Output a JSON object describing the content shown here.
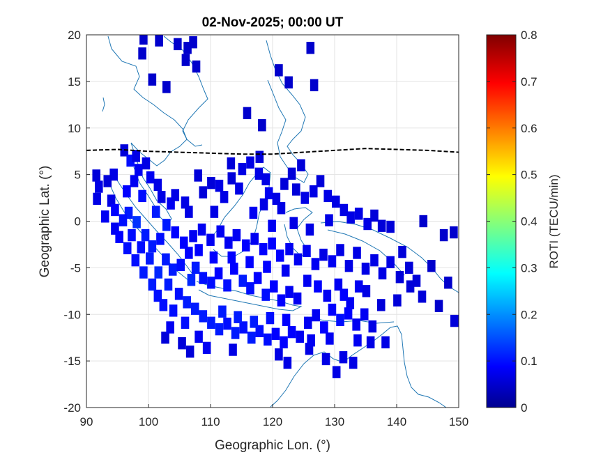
{
  "chart_data": {
    "type": "heatmap",
    "title": "02-Nov-2025; 00:00 UT",
    "xlabel": "Geographic Lon. (°)",
    "ylabel": "Geographic Lat. (°)",
    "xlim": [
      90,
      150
    ],
    "ylim": [
      -20,
      20
    ],
    "xticks": [
      90,
      100,
      110,
      120,
      130,
      140,
      150
    ],
    "yticks": [
      20,
      15,
      10,
      5,
      0,
      -5,
      -10,
      -15,
      -20
    ],
    "grid": true,
    "colorbar": {
      "label": "ROTI (TECU/min)",
      "range": [
        0,
        0.8
      ],
      "ticks": [
        0,
        0.1,
        0.2,
        0.3,
        0.4,
        0.5,
        0.6,
        0.7,
        0.8
      ],
      "colormap": "jet"
    },
    "boundary_line": {
      "style": "dashed",
      "color": "#000000",
      "points": [
        [
          90,
          7.6
        ],
        [
          95,
          7.7
        ],
        [
          100,
          7.5
        ],
        [
          105,
          7.4
        ],
        [
          110,
          7.3
        ],
        [
          115,
          7.2
        ],
        [
          120,
          7.2
        ],
        [
          125,
          7.4
        ],
        [
          130,
          7.6
        ],
        [
          135,
          7.8
        ],
        [
          140,
          7.7
        ],
        [
          145,
          7.6
        ],
        [
          150,
          7.4
        ]
      ]
    },
    "cell_size_deg": 1.3,
    "cells": [
      [
        99.2,
        19.6,
        0.06
      ],
      [
        101.7,
        19.4,
        0.06
      ],
      [
        104.7,
        19.0,
        0.06
      ],
      [
        106.3,
        18.6,
        0.06
      ],
      [
        99.0,
        18.0,
        0.06
      ],
      [
        106.0,
        17.3,
        0.06
      ],
      [
        107.7,
        16.6,
        0.06
      ],
      [
        121.0,
        16.2,
        0.06
      ],
      [
        122.6,
        14.9,
        0.06
      ],
      [
        126.7,
        14.6,
        0.06
      ],
      [
        100.6,
        15.2,
        0.06
      ],
      [
        102.9,
        14.4,
        0.06
      ],
      [
        126.1,
        18.6,
        0.06
      ],
      [
        115.9,
        11.6,
        0.06
      ],
      [
        118.3,
        10.3,
        0.06
      ],
      [
        107.2,
        19.2,
        0.06
      ],
      [
        96.1,
        7.6,
        0.07
      ],
      [
        94.4,
        5.0,
        0.08
      ],
      [
        93.4,
        4.3,
        0.07
      ],
      [
        91.6,
        4.9,
        0.07
      ],
      [
        92.0,
        3.7,
        0.08
      ],
      [
        94.0,
        2.2,
        0.08
      ],
      [
        97.1,
        6.5,
        0.11
      ],
      [
        98.4,
        5.5,
        0.09
      ],
      [
        99.6,
        6.2,
        0.08
      ],
      [
        100.3,
        4.7,
        0.09
      ],
      [
        101.5,
        3.9,
        0.08
      ],
      [
        102.1,
        2.6,
        0.08
      ],
      [
        103.6,
        1.9,
        0.09
      ],
      [
        104.3,
        2.8,
        0.08
      ],
      [
        105.9,
        2.0,
        0.08
      ],
      [
        106.5,
        1.0,
        0.08
      ],
      [
        108.8,
        3.1,
        0.07
      ],
      [
        110.1,
        4.1,
        0.07
      ],
      [
        111.4,
        3.8,
        0.08
      ],
      [
        112.2,
        2.6,
        0.08
      ],
      [
        113.4,
        4.6,
        0.07
      ],
      [
        115.1,
        5.6,
        0.08
      ],
      [
        116.4,
        6.3,
        0.08
      ],
      [
        117.8,
        5.1,
        0.08
      ],
      [
        118.9,
        4.5,
        0.08
      ],
      [
        119.4,
        3.0,
        0.09
      ],
      [
        120.6,
        2.4,
        0.08
      ],
      [
        121.9,
        4.0,
        0.07
      ],
      [
        123.1,
        5.1,
        0.07
      ],
      [
        123.8,
        3.4,
        0.07
      ],
      [
        125.2,
        2.5,
        0.08
      ],
      [
        126.6,
        3.2,
        0.08
      ],
      [
        127.7,
        4.3,
        0.07
      ],
      [
        128.9,
        2.7,
        0.08
      ],
      [
        130.2,
        2.1,
        0.08
      ],
      [
        131.5,
        1.2,
        0.08
      ],
      [
        132.6,
        0.4,
        0.08
      ],
      [
        133.9,
        0.8,
        0.08
      ],
      [
        135.3,
        -0.3,
        0.08
      ],
      [
        136.4,
        0.6,
        0.07
      ],
      [
        137.6,
        -0.5,
        0.07
      ],
      [
        139.0,
        -0.6,
        0.07
      ],
      [
        144.3,
        0.0,
        0.06
      ],
      [
        147.6,
        -1.5,
        0.06
      ],
      [
        149.2,
        -1.2,
        0.06
      ],
      [
        121.4,
        1.4,
        0.08
      ],
      [
        118.6,
        1.8,
        0.08
      ],
      [
        116.9,
        0.9,
        0.09
      ],
      [
        96.8,
        0.9,
        0.12
      ],
      [
        98.1,
        -0.1,
        0.14
      ],
      [
        99.5,
        -1.5,
        0.12
      ],
      [
        100.6,
        -2.7,
        0.12
      ],
      [
        101.9,
        -1.9,
        0.11
      ],
      [
        102.8,
        -4.1,
        0.12
      ],
      [
        103.9,
        -5.2,
        0.12
      ],
      [
        105.2,
        -4.7,
        0.11
      ],
      [
        106.5,
        -3.4,
        0.1
      ],
      [
        107.6,
        -5.0,
        0.12
      ],
      [
        108.8,
        -6.1,
        0.11
      ],
      [
        110.1,
        -6.6,
        0.11
      ],
      [
        111.3,
        -5.6,
        0.1
      ],
      [
        112.7,
        -6.9,
        0.11
      ],
      [
        113.8,
        -5.1,
        0.1
      ],
      [
        115.2,
        -6.4,
        0.12
      ],
      [
        116.4,
        -7.2,
        0.11
      ],
      [
        117.6,
        -6.1,
        0.1
      ],
      [
        118.9,
        -7.9,
        0.11
      ],
      [
        120.2,
        -7.0,
        0.1
      ],
      [
        121.4,
        -8.5,
        0.1
      ],
      [
        122.7,
        -7.6,
        0.09
      ],
      [
        124.0,
        -8.3,
        0.09
      ],
      [
        104.3,
        -1.2,
        0.1
      ],
      [
        105.7,
        -2.3,
        0.1
      ],
      [
        107.2,
        -1.6,
        0.09
      ],
      [
        108.6,
        -0.9,
        0.09
      ],
      [
        110.0,
        -2.0,
        0.09
      ],
      [
        111.6,
        -1.1,
        0.09
      ],
      [
        112.9,
        -2.3,
        0.09
      ],
      [
        114.2,
        -1.5,
        0.09
      ],
      [
        115.7,
        -2.6,
        0.1
      ],
      [
        117.1,
        -1.9,
        0.09
      ],
      [
        118.5,
        -3.0,
        0.1
      ],
      [
        119.9,
        -2.4,
        0.1
      ],
      [
        121.2,
        -3.7,
        0.1
      ],
      [
        122.7,
        -3.0,
        0.09
      ],
      [
        124.1,
        -4.1,
        0.09
      ],
      [
        125.5,
        -3.2,
        0.09
      ],
      [
        126.9,
        -4.6,
        0.09
      ],
      [
        128.2,
        -3.6,
        0.08
      ],
      [
        129.6,
        -4.3,
        0.09
      ],
      [
        130.9,
        -3.1,
        0.08
      ],
      [
        132.3,
        -4.8,
        0.08
      ],
      [
        133.6,
        -3.4,
        0.08
      ],
      [
        135.0,
        -5.1,
        0.08
      ],
      [
        136.4,
        -4.2,
        0.08
      ],
      [
        137.7,
        -5.6,
        0.08
      ],
      [
        139.0,
        -4.4,
        0.08
      ],
      [
        140.5,
        -6.0,
        0.07
      ],
      [
        142.0,
        -5.0,
        0.07
      ],
      [
        145.6,
        -4.8,
        0.06
      ],
      [
        148.3,
        -6.6,
        0.06
      ],
      [
        142.2,
        -7.0,
        0.07
      ],
      [
        144.1,
        -8.1,
        0.07
      ],
      [
        146.8,
        -9.1,
        0.06
      ],
      [
        149.3,
        -10.7,
        0.07
      ],
      [
        140.1,
        -8.5,
        0.07
      ],
      [
        137.5,
        -9.0,
        0.07
      ],
      [
        135.1,
        -7.5,
        0.08
      ],
      [
        132.5,
        -8.8,
        0.09
      ],
      [
        130.6,
        -6.8,
        0.09
      ],
      [
        128.8,
        -8.0,
        0.09
      ],
      [
        127.3,
        -7.0,
        0.1
      ],
      [
        104.9,
        -7.8,
        0.11
      ],
      [
        106.2,
        -8.7,
        0.12
      ],
      [
        107.5,
        -9.4,
        0.12
      ],
      [
        108.8,
        -10.2,
        0.12
      ],
      [
        110.1,
        -10.9,
        0.12
      ],
      [
        111.4,
        -11.6,
        0.12
      ],
      [
        112.7,
        -11.0,
        0.11
      ],
      [
        114.0,
        -12.0,
        0.12
      ],
      [
        115.3,
        -11.4,
        0.11
      ],
      [
        116.6,
        -12.5,
        0.12
      ],
      [
        117.9,
        -11.8,
        0.11
      ],
      [
        119.2,
        -12.7,
        0.11
      ],
      [
        120.5,
        -12.1,
        0.1
      ],
      [
        121.8,
        -13.0,
        0.1
      ],
      [
        123.1,
        -11.9,
        0.1
      ],
      [
        124.4,
        -12.4,
        0.09
      ],
      [
        125.7,
        -10.9,
        0.09
      ],
      [
        127.0,
        -10.1,
        0.09
      ],
      [
        128.3,
        -11.4,
        0.1
      ],
      [
        129.6,
        -9.5,
        0.1
      ],
      [
        130.9,
        -10.6,
        0.11
      ],
      [
        132.2,
        -9.9,
        0.1
      ],
      [
        133.5,
        -11.1,
        0.09
      ],
      [
        134.8,
        -10.0,
        0.09
      ],
      [
        136.1,
        -11.3,
        0.08
      ],
      [
        108.1,
        -12.4,
        0.09
      ],
      [
        109.4,
        -13.6,
        0.09
      ],
      [
        105.4,
        -13.1,
        0.07
      ],
      [
        102.7,
        -12.5,
        0.07
      ],
      [
        106.7,
        -14.0,
        0.07
      ],
      [
        113.6,
        -13.8,
        0.08
      ],
      [
        121.0,
        -14.3,
        0.08
      ],
      [
        122.4,
        -15.2,
        0.08
      ],
      [
        125.9,
        -13.7,
        0.08
      ],
      [
        128.6,
        -14.8,
        0.08
      ],
      [
        131.4,
        -14.6,
        0.08
      ],
      [
        130.3,
        -16.2,
        0.08
      ],
      [
        133.0,
        -15.2,
        0.08
      ],
      [
        135.8,
        -13.0,
        0.08
      ],
      [
        138.2,
        -13.0,
        0.08
      ],
      [
        133.7,
        -12.8,
        0.09
      ],
      [
        104.0,
        -9.6,
        0.11
      ],
      [
        106.9,
        -6.3,
        0.13
      ],
      [
        103.2,
        -6.8,
        0.12
      ],
      [
        101.6,
        -5.5,
        0.13
      ],
      [
        100.2,
        -4.0,
        0.12
      ],
      [
        98.8,
        -2.8,
        0.11
      ],
      [
        97.3,
        -1.5,
        0.11
      ],
      [
        95.9,
        0.1,
        0.11
      ],
      [
        94.6,
        1.2,
        0.1
      ],
      [
        96.5,
        3.2,
        0.1
      ],
      [
        99.0,
        2.7,
        0.11
      ],
      [
        101.2,
        1.0,
        0.12
      ],
      [
        102.9,
        -0.4,
        0.12
      ],
      [
        97.7,
        4.3,
        0.09
      ],
      [
        94.6,
        -0.8,
        0.09
      ],
      [
        98.0,
        7.0,
        0.08
      ],
      [
        108.0,
        4.9,
        0.07
      ],
      [
        113.3,
        6.2,
        0.07
      ],
      [
        114.6,
        3.5,
        0.08
      ],
      [
        110.6,
        1.0,
        0.08
      ],
      [
        129.1,
        0.1,
        0.08
      ],
      [
        126.0,
        -0.9,
        0.08
      ],
      [
        123.4,
        -0.2,
        0.08
      ],
      [
        119.9,
        -0.5,
        0.09
      ],
      [
        124.6,
        6.0,
        0.07
      ],
      [
        117.9,
        6.9,
        0.07
      ],
      [
        125.6,
        -6.4,
        0.09
      ],
      [
        122.1,
        -5.3,
        0.09
      ],
      [
        119.1,
        -4.9,
        0.1
      ],
      [
        116.3,
        -4.4,
        0.1
      ],
      [
        113.4,
        -3.9,
        0.1
      ],
      [
        110.5,
        -3.9,
        0.1
      ],
      [
        108.1,
        -3.1,
        0.1
      ],
      [
        131.5,
        -7.9,
        0.1
      ],
      [
        133.9,
        -7.0,
        0.09
      ],
      [
        129.2,
        -12.6,
        0.09
      ],
      [
        126.2,
        -12.8,
        0.09
      ],
      [
        140.9,
        -3.3,
        0.07
      ],
      [
        143.2,
        -6.4,
        0.07
      ],
      [
        101.5,
        -8.0,
        0.11
      ],
      [
        102.4,
        -9.0,
        0.11
      ],
      [
        100.6,
        -6.8,
        0.12
      ],
      [
        99.2,
        -5.5,
        0.12
      ],
      [
        97.9,
        -4.2,
        0.11
      ],
      [
        96.6,
        -2.9,
        0.11
      ],
      [
        95.3,
        -1.7,
        0.1
      ],
      [
        93.0,
        0.5,
        0.09
      ],
      [
        91.7,
        2.4,
        0.08
      ],
      [
        105.9,
        -10.9,
        0.11
      ],
      [
        103.5,
        -11.4,
        0.09
      ],
      [
        111.9,
        -9.7,
        0.12
      ],
      [
        114.4,
        -10.3,
        0.12
      ],
      [
        117.0,
        -10.8,
        0.12
      ],
      [
        119.6,
        -10.4,
        0.11
      ],
      [
        122.2,
        -10.6,
        0.1
      ]
    ]
  }
}
